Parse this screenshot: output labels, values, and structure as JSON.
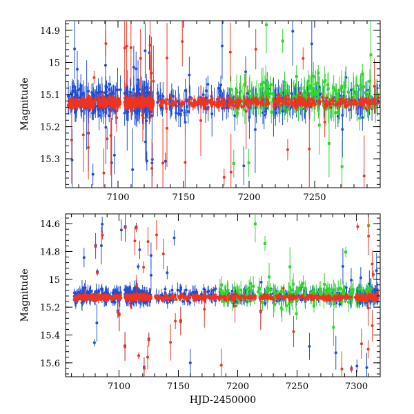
{
  "colors": {
    "blue": "#1f4fd6",
    "red": "#f0331f",
    "green": "#2fd62c",
    "frame": "#000000"
  },
  "chart_data": [
    {
      "type": "scatter",
      "title": "",
      "xlabel": "",
      "ylabel": "Magnitude",
      "xlim": [
        7060,
        7300
      ],
      "ylim": [
        15.39,
        14.87
      ],
      "x_ticks": [
        7100,
        7150,
        7200,
        7250
      ],
      "x_tick_labels": [
        "7100",
        "7150",
        "7200",
        "7250"
      ],
      "y_ticks": [
        14.9,
        15.0,
        15.1,
        15.2,
        15.3
      ],
      "y_tick_labels": [
        "14.9",
        "15",
        "15.1",
        "15.2",
        "15.3"
      ],
      "series": [
        {
          "name": "blue",
          "color": "#1f4fd6",
          "mean": 15.12,
          "scatter": 0.06
        },
        {
          "name": "green",
          "color": "#2fd62c",
          "mean": 15.11,
          "scatter": 0.07
        },
        {
          "name": "red",
          "color": "#f0331f",
          "mean": 15.125,
          "scatter": 0.02
        }
      ]
    },
    {
      "type": "scatter",
      "title": "",
      "xlabel": "HJD-2450000",
      "ylabel": "Magnitude",
      "xlim": [
        7055,
        7320
      ],
      "ylim": [
        15.7,
        14.53
      ],
      "x_ticks": [
        7100,
        7150,
        7200,
        7250,
        7300
      ],
      "x_tick_labels": [
        "7100",
        "7150",
        "7200",
        "7250",
        "7300"
      ],
      "y_ticks": [
        14.6,
        14.8,
        15.0,
        15.2,
        15.4,
        15.6
      ],
      "y_tick_labels": [
        "14.6",
        "14.8",
        "15",
        "15.2",
        "15.4",
        "15.6"
      ],
      "series": [
        {
          "name": "blue",
          "color": "#1f4fd6",
          "mean": 15.12,
          "scatter": 0.07
        },
        {
          "name": "green",
          "color": "#2fd62c",
          "mean": 15.11,
          "scatter": 0.1
        },
        {
          "name": "red",
          "color": "#f0331f",
          "mean": 15.13,
          "scatter": 0.025
        }
      ]
    }
  ]
}
